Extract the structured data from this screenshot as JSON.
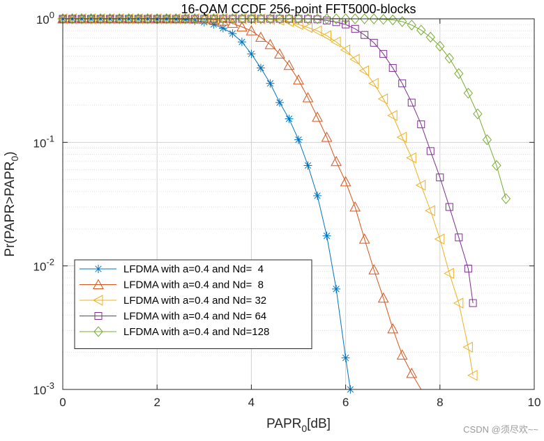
{
  "chart_data": {
    "type": "line",
    "title": "16-QAM CCDF 256-point FFT5000-blocks",
    "xlabel": "PAPR",
    "xlabel_sub": "0",
    "xlabel_unit": "[dB]",
    "ylabel": "Pr(PAPR>PAPR",
    "ylabel_sub": "0",
    "ylabel_tail": ")",
    "xlim": [
      0,
      10
    ],
    "ylim": [
      0.001,
      1
    ],
    "yscale": "log",
    "grid": true,
    "minor_grid": true,
    "legend_position": "bottom-left",
    "x_ticks": [
      0,
      2,
      4,
      6,
      8,
      10
    ],
    "y_ticks": [
      {
        "value": 1,
        "base": "10",
        "exp": "0"
      },
      {
        "value": 0.1,
        "base": "10",
        "exp": "-1"
      },
      {
        "value": 0.01,
        "base": "10",
        "exp": "-2"
      },
      {
        "value": 0.001,
        "base": "10",
        "exp": "-3"
      }
    ],
    "series": [
      {
        "name": "LFDMA with a=0.4 and Nd=  4",
        "color": "#0072BD",
        "marker": "asterisk",
        "x": [
          0,
          0.2,
          0.4,
          0.6,
          0.8,
          1.0,
          1.2,
          1.4,
          1.6,
          1.8,
          2.0,
          2.2,
          2.4,
          2.6,
          2.8,
          3.0,
          3.2,
          3.4,
          3.6,
          3.8,
          4.0,
          4.2,
          4.4,
          4.6,
          4.8,
          5.0,
          5.2,
          5.4,
          5.6,
          5.8,
          6.0,
          6.1
        ],
        "y": [
          1,
          1,
          1,
          1,
          1,
          1,
          1,
          1,
          1,
          1,
          0.999,
          0.997,
          0.993,
          0.985,
          0.965,
          0.94,
          0.9,
          0.84,
          0.76,
          0.65,
          0.52,
          0.4,
          0.3,
          0.21,
          0.155,
          0.105,
          0.065,
          0.037,
          0.0175,
          0.0065,
          0.0018,
          0.001
        ]
      },
      {
        "name": "LFDMA with a=0.4 and Nd=  8",
        "color": "#D95319",
        "marker": "triangle-up",
        "x": [
          0,
          0.2,
          0.4,
          0.6,
          0.8,
          1.0,
          1.2,
          1.4,
          1.6,
          1.8,
          2.0,
          2.2,
          2.4,
          2.6,
          2.8,
          3.0,
          3.2,
          3.4,
          3.6,
          3.8,
          4.0,
          4.2,
          4.4,
          4.6,
          4.8,
          5.0,
          5.2,
          5.4,
          5.6,
          5.8,
          6.0,
          6.2,
          6.4,
          6.6,
          6.8,
          7.0,
          7.2,
          7.4,
          7.6
        ],
        "y": [
          1,
          1,
          1,
          1,
          1,
          1,
          1,
          1,
          1,
          1,
          1,
          1,
          1,
          1,
          0.999,
          0.995,
          0.985,
          0.96,
          0.92,
          0.86,
          0.8,
          0.71,
          0.62,
          0.52,
          0.42,
          0.32,
          0.23,
          0.16,
          0.11,
          0.07,
          0.048,
          0.03,
          0.0165,
          0.0093,
          0.0055,
          0.0031,
          0.0019,
          0.00135,
          0.00097
        ]
      },
      {
        "name": "LFDMA with a=0.4 and Nd= 32",
        "color": "#EDB120",
        "marker": "triangle-left",
        "x": [
          0,
          0.2,
          0.4,
          0.6,
          0.8,
          1.0,
          1.2,
          1.4,
          1.6,
          1.8,
          2.0,
          2.2,
          2.4,
          2.6,
          2.8,
          3.0,
          3.2,
          3.4,
          3.6,
          3.8,
          4.0,
          4.2,
          4.4,
          4.6,
          4.8,
          5.0,
          5.2,
          5.4,
          5.6,
          5.8,
          6.0,
          6.2,
          6.4,
          6.6,
          6.8,
          7.0,
          7.2,
          7.4,
          7.6,
          7.8,
          8.0,
          8.2,
          8.4,
          8.6,
          8.7
        ],
        "y": [
          1,
          1,
          1,
          1,
          1,
          1,
          1,
          1,
          1,
          1,
          1,
          1,
          1,
          1,
          1,
          1,
          1,
          1,
          1,
          1,
          1,
          0.998,
          0.99,
          0.975,
          0.95,
          0.9,
          0.85,
          0.8,
          0.73,
          0.65,
          0.56,
          0.47,
          0.38,
          0.3,
          0.225,
          0.165,
          0.11,
          0.075,
          0.045,
          0.028,
          0.0165,
          0.0087,
          0.005,
          0.0022,
          0.0013
        ]
      },
      {
        "name": "LFDMA with a=0.4 and Nd= 64",
        "color": "#7E2F8E",
        "marker": "square",
        "x": [
          0,
          0.2,
          0.4,
          0.6,
          0.8,
          1.0,
          1.2,
          1.4,
          1.6,
          1.8,
          2.0,
          2.2,
          2.4,
          2.6,
          2.8,
          3.0,
          3.2,
          3.4,
          3.6,
          3.8,
          4.0,
          4.2,
          4.4,
          4.6,
          4.8,
          5.0,
          5.2,
          5.4,
          5.6,
          5.8,
          6.0,
          6.2,
          6.4,
          6.6,
          6.8,
          7.0,
          7.2,
          7.4,
          7.6,
          7.8,
          8.0,
          8.2,
          8.4,
          8.6,
          8.7
        ],
        "y": [
          1,
          1,
          1,
          1,
          1,
          1,
          1,
          1,
          1,
          1,
          1,
          1,
          1,
          1,
          1,
          1,
          1,
          1,
          1,
          1,
          1,
          1,
          1,
          1,
          1,
          1,
          0.998,
          0.99,
          0.97,
          0.94,
          0.9,
          0.83,
          0.74,
          0.64,
          0.52,
          0.4,
          0.3,
          0.21,
          0.14,
          0.085,
          0.052,
          0.03,
          0.017,
          0.0095,
          0.005
        ]
      },
      {
        "name": "LFDMA with a=0.4 and Nd=128",
        "color": "#77AC30",
        "marker": "diamond",
        "x": [
          0,
          0.2,
          0.4,
          0.6,
          0.8,
          1.0,
          1.2,
          1.4,
          1.6,
          1.8,
          2.0,
          2.2,
          2.4,
          2.6,
          2.8,
          3.0,
          3.2,
          3.4,
          3.6,
          3.8,
          4.0,
          4.2,
          4.4,
          4.6,
          4.8,
          5.0,
          5.2,
          5.4,
          5.6,
          5.8,
          6.0,
          6.2,
          6.4,
          6.6,
          6.8,
          7.0,
          7.2,
          7.4,
          7.6,
          7.8,
          8.0,
          8.2,
          8.4,
          8.6,
          8.8,
          9.0,
          9.2,
          9.4
        ],
        "y": [
          1,
          1,
          1,
          1,
          1,
          1,
          1,
          1,
          1,
          1,
          1,
          1,
          1,
          1,
          1,
          1,
          1,
          1,
          1,
          1,
          1,
          1,
          1,
          1,
          1,
          1,
          1,
          1,
          1,
          1,
          1,
          1,
          1,
          0.999,
          0.99,
          0.98,
          0.95,
          0.89,
          0.81,
          0.71,
          0.6,
          0.48,
          0.36,
          0.25,
          0.17,
          0.105,
          0.065,
          0.035
        ]
      }
    ]
  },
  "watermark": "CSDN @须尽欢~~"
}
